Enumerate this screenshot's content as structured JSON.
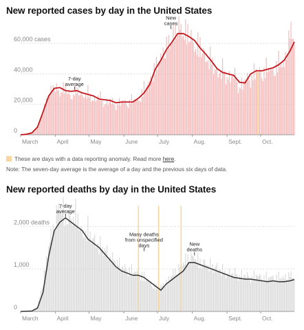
{
  "chart_data": [
    {
      "type": "bar",
      "title": "New reported cases by day in the United States",
      "y_unit_label": "cases",
      "ylim": [
        0,
        75000
      ],
      "yticks": [
        0,
        20000,
        40000,
        60000
      ],
      "ytick_labels": [
        "0",
        "20,000",
        "40,000",
        "60,000 cases"
      ],
      "x_months": [
        "March",
        "April",
        "May",
        "June",
        "July",
        "Aug.",
        "Sept.",
        "Oct."
      ],
      "grid": "horizontal-dashed",
      "bar_color": "#f4b6b6",
      "line_color": "#c2161c",
      "anomaly_color": "#f7d6a0",
      "series": [
        {
          "name": "7-day average",
          "values": [
            [
              0,
              0
            ],
            [
              5,
              300
            ],
            [
              10,
              1200
            ],
            [
              15,
              5000
            ],
            [
              20,
              15000
            ],
            [
              25,
              25500
            ],
            [
              30,
              30500
            ],
            [
              35,
              31000
            ],
            [
              40,
              29000
            ],
            [
              45,
              28500
            ],
            [
              50,
              29000
            ],
            [
              55,
              27500
            ],
            [
              60,
              26500
            ],
            [
              65,
              25500
            ],
            [
              70,
              23500
            ],
            [
              75,
              23000
            ],
            [
              80,
              22500
            ],
            [
              85,
              21000
            ],
            [
              90,
              21500
            ],
            [
              95,
              21500
            ],
            [
              100,
              21500
            ],
            [
              105,
              24000
            ],
            [
              110,
              27500
            ],
            [
              115,
              33000
            ],
            [
              120,
              43000
            ],
            [
              125,
              49000
            ],
            [
              130,
              56000
            ],
            [
              135,
              61000
            ],
            [
              140,
              66500
            ],
            [
              145,
              66500
            ],
            [
              150,
              64500
            ],
            [
              155,
              62000
            ],
            [
              160,
              57000
            ],
            [
              165,
              53000
            ],
            [
              170,
              48500
            ],
            [
              175,
              43500
            ],
            [
              180,
              41000
            ],
            [
              185,
              40000
            ],
            [
              190,
              39000
            ],
            [
              195,
              34500
            ],
            [
              200,
              34000
            ],
            [
              205,
              40000
            ],
            [
              210,
              42000
            ],
            [
              215,
              42000
            ],
            [
              220,
              43000
            ],
            [
              225,
              44000
            ],
            [
              230,
              46000
            ],
            [
              235,
              49000
            ],
            [
              240,
              55000
            ],
            [
              244,
              61000
            ]
          ]
        },
        {
          "name": "New cases",
          "values": [
            [
              0,
              0
            ],
            [
              5,
              200
            ],
            [
              10,
              1500
            ],
            [
              15,
              5500
            ],
            [
              20,
              16000
            ],
            [
              25,
              27000
            ],
            [
              30,
              33000
            ],
            [
              35,
              28000
            ],
            [
              40,
              33000
            ],
            [
              45,
              24000
            ],
            [
              50,
              32000
            ],
            [
              55,
              25000
            ],
            [
              60,
              29000
            ],
            [
              65,
              22000
            ],
            [
              70,
              27000
            ],
            [
              75,
              20000
            ],
            [
              80,
              24000
            ],
            [
              85,
              19000
            ],
            [
              90,
              23500
            ],
            [
              95,
              20000
            ],
            [
              100,
              25000
            ],
            [
              105,
              22000
            ],
            [
              110,
              32000
            ],
            [
              115,
              35000
            ],
            [
              120,
              46000
            ],
            [
              125,
              51000
            ],
            [
              130,
              60000
            ],
            [
              135,
              64000
            ],
            [
              140,
              74000
            ],
            [
              145,
              68000
            ],
            [
              150,
              70000
            ],
            [
              155,
              58000
            ],
            [
              160,
              62000
            ],
            [
              165,
              50000
            ],
            [
              170,
              52000
            ],
            [
              175,
              40000
            ],
            [
              180,
              45000
            ],
            [
              185,
              37000
            ],
            [
              190,
              42000
            ],
            [
              195,
              31000
            ],
            [
              200,
              38000
            ],
            [
              205,
              37000
            ],
            [
              210,
              45000
            ],
            [
              215,
              40000
            ],
            [
              220,
              47000
            ],
            [
              225,
              41000
            ],
            [
              230,
              50000
            ],
            [
              235,
              46000
            ],
            [
              240,
              70000
            ],
            [
              244,
              65000
            ]
          ]
        }
      ],
      "anomalies": [
        211
      ],
      "annotations": [
        {
          "text": [
            "7-day",
            "average"
          ],
          "x": 48,
          "y": 29000
        },
        {
          "text": [
            "New",
            "cases"
          ],
          "x": 134,
          "y": 69000
        }
      ]
    },
    {
      "type": "bar",
      "title": "New reported deaths by day in the United States",
      "y_unit_label": "deaths",
      "ylim": [
        0,
        2700
      ],
      "yticks": [
        0,
        1000,
        2000
      ],
      "ytick_labels": [
        "0",
        "1,000",
        "2,000 deaths"
      ],
      "x_months": [
        "March",
        "April",
        "May",
        "June",
        "July",
        "Aug.",
        "Sept.",
        "Oct."
      ],
      "grid": "horizontal-dashed",
      "bar_color": "#d8d8d8",
      "line_color": "#333333",
      "anomaly_color": "#f7d6a0",
      "series": [
        {
          "name": "7-day average",
          "values": [
            [
              0,
              0
            ],
            [
              10,
              10
            ],
            [
              15,
              80
            ],
            [
              20,
              450
            ],
            [
              25,
              1300
            ],
            [
              30,
              1900
            ],
            [
              35,
              2100
            ],
            [
              40,
              2200
            ],
            [
              45,
              2100
            ],
            [
              50,
              2000
            ],
            [
              55,
              1900
            ],
            [
              60,
              1700
            ],
            [
              65,
              1600
            ],
            [
              70,
              1500
            ],
            [
              75,
              1350
            ],
            [
              80,
              1200
            ],
            [
              85,
              1050
            ],
            [
              90,
              950
            ],
            [
              95,
              900
            ],
            [
              100,
              850
            ],
            [
              105,
              850
            ],
            [
              110,
              800
            ],
            [
              115,
              700
            ],
            [
              120,
              600
            ],
            [
              125,
              500
            ],
            [
              130,
              650
            ],
            [
              135,
              750
            ],
            [
              140,
              850
            ],
            [
              145,
              950
            ],
            [
              150,
              1150
            ],
            [
              155,
              1150
            ],
            [
              160,
              1100
            ],
            [
              165,
              1050
            ],
            [
              170,
              1000
            ],
            [
              175,
              950
            ],
            [
              180,
              900
            ],
            [
              185,
              850
            ],
            [
              190,
              800
            ],
            [
              195,
              780
            ],
            [
              200,
              760
            ],
            [
              205,
              760
            ],
            [
              210,
              740
            ],
            [
              215,
              720
            ],
            [
              220,
              700
            ],
            [
              225,
              720
            ],
            [
              230,
              700
            ],
            [
              235,
              700
            ],
            [
              240,
              720
            ],
            [
              244,
              750
            ]
          ]
        },
        {
          "name": "New deaths",
          "values": [
            [
              0,
              0
            ],
            [
              10,
              20
            ],
            [
              15,
              120
            ],
            [
              20,
              700
            ],
            [
              25,
              1600
            ],
            [
              30,
              2100
            ],
            [
              35,
              2600
            ],
            [
              40,
              2300
            ],
            [
              45,
              2200
            ],
            [
              50,
              2400
            ],
            [
              55,
              1800
            ],
            [
              60,
              2000
            ],
            [
              65,
              1700
            ],
            [
              70,
              1600
            ],
            [
              75,
              1500
            ],
            [
              80,
              1300
            ],
            [
              85,
              1200
            ],
            [
              90,
              1100
            ],
            [
              95,
              1000
            ],
            [
              100,
              1000
            ],
            [
              105,
              900
            ],
            [
              110,
              850
            ],
            [
              115,
              700
            ],
            [
              120,
              600
            ],
            [
              125,
              600
            ],
            [
              130,
              700
            ],
            [
              135,
              900
            ],
            [
              140,
              1000
            ],
            [
              145,
              1200
            ],
            [
              150,
              1300
            ],
            [
              155,
              1300
            ],
            [
              160,
              1200
            ],
            [
              165,
              1150
            ],
            [
              170,
              1100
            ],
            [
              175,
              1050
            ],
            [
              180,
              1000
            ],
            [
              185,
              900
            ],
            [
              190,
              950
            ],
            [
              195,
              850
            ],
            [
              200,
              900
            ],
            [
              205,
              800
            ],
            [
              210,
              900
            ],
            [
              215,
              800
            ],
            [
              220,
              850
            ],
            [
              225,
              800
            ],
            [
              230,
              850
            ],
            [
              235,
              800
            ],
            [
              240,
              900
            ],
            [
              244,
              800
            ]
          ]
        }
      ],
      "anomalies": [
        105,
        123,
        143
      ],
      "annotations": [
        {
          "text": [
            "7-day",
            "average"
          ],
          "x": 40,
          "y": 2200
        },
        {
          "text": [
            "Many deaths",
            "from unspecified",
            "days"
          ],
          "x": 110,
          "y": 1400
        },
        {
          "text": [
            "New",
            "deaths"
          ],
          "x": 155,
          "y": 1300
        }
      ]
    }
  ],
  "notes": {
    "legend_text": "These are days with a data reporting anomaly. Read more",
    "legend_link": "here",
    "note_text": "Note: The seven-day average is the average of a day and the previous six days of data."
  }
}
